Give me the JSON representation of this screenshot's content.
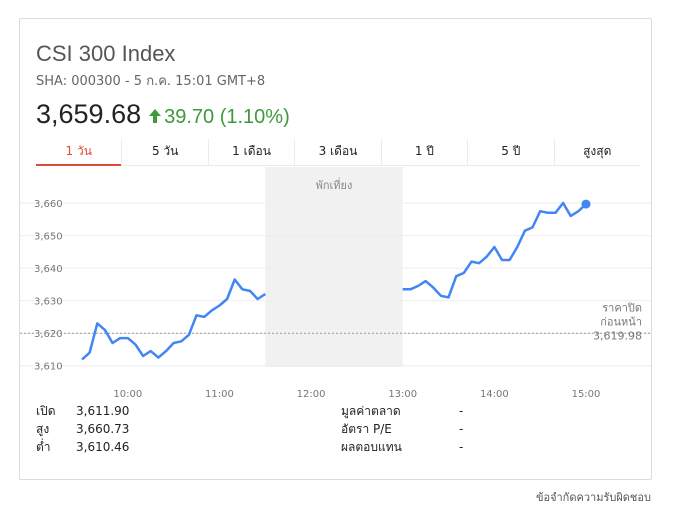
{
  "header": {
    "title": "CSI 300 Index",
    "subtitle": "SHA: 000300 - 5 ก.ค. 15:01 GMT+8",
    "price": "3,659.68",
    "change": "39.70 (1.10%)",
    "change_arrow": "arrow-up-icon",
    "change_color": "#3c9a3c"
  },
  "tabs": [
    {
      "label": "1 วัน",
      "active": true
    },
    {
      "label": "5 วัน",
      "active": false
    },
    {
      "label": "1 เดือน",
      "active": false
    },
    {
      "label": "3 เดือน",
      "active": false
    },
    {
      "label": "1 ปี",
      "active": false
    },
    {
      "label": "5 ปี",
      "active": false
    },
    {
      "label": "สูงสุด",
      "active": false
    }
  ],
  "chart_data": {
    "type": "line",
    "lunch_label": "พักเที่ยง",
    "prev_close_label_1": "ราคาปิด",
    "prev_close_label_2": "ก่อนหน้า",
    "prev_close_value": "3,619.98",
    "prev_close": 3619.98,
    "ylim": [
      3605,
      3668
    ],
    "y_ticks": [
      3610,
      3620,
      3630,
      3640,
      3650,
      3660
    ],
    "y_tick_labels": [
      "3,610",
      "3,620",
      "3,630",
      "3,640",
      "3,650",
      "3,660"
    ],
    "x_ticks": [
      "10:00",
      "11:00",
      "12:00",
      "13:00",
      "14:00",
      "15:00"
    ],
    "line_color": "#4285f4",
    "morning": {
      "x": [
        "09:30",
        "09:35",
        "09:40",
        "09:45",
        "09:50",
        "09:55",
        "10:00",
        "10:05",
        "10:10",
        "10:15",
        "10:20",
        "10:25",
        "10:30",
        "10:35",
        "10:40",
        "10:45",
        "10:50",
        "10:55",
        "11:00",
        "11:05",
        "11:10",
        "11:15",
        "11:20",
        "11:25",
        "11:30"
      ],
      "y": [
        3611.9,
        3614,
        3623,
        3621,
        3617,
        3618.5,
        3618.5,
        3616.5,
        3613,
        3614.5,
        3612.5,
        3614.5,
        3617,
        3617.5,
        3619.5,
        3625.5,
        3625,
        3627,
        3628.5,
        3630.5,
        3636.5,
        3633.5,
        3633,
        3630.5,
        3632
      ]
    },
    "afternoon": {
      "x": [
        "13:00",
        "13:05",
        "13:10",
        "13:15",
        "13:20",
        "13:25",
        "13:30",
        "13:35",
        "13:40",
        "13:45",
        "13:50",
        "13:55",
        "14:00",
        "14:05",
        "14:10",
        "14:15",
        "14:20",
        "14:25",
        "14:30",
        "14:35",
        "14:40",
        "14:45",
        "14:50",
        "14:55",
        "15:00"
      ],
      "y": [
        3633.5,
        3633.5,
        3634.5,
        3636,
        3634,
        3631.5,
        3631,
        3637.5,
        3638.5,
        3642,
        3641.5,
        3643.5,
        3646.5,
        3642.5,
        3642.5,
        3646.5,
        3651.5,
        3652.5,
        3657.5,
        3657,
        3657,
        3660,
        3656,
        3657.5,
        3659.68
      ]
    }
  },
  "stats": [
    {
      "label": "เปิด",
      "value": "3,611.90",
      "label2": "มูลค่าตลาด",
      "value2": "-"
    },
    {
      "label": "สูง",
      "value": "3,660.73",
      "label2": "อัตรา P/E",
      "value2": "-"
    },
    {
      "label": "ต่ำ",
      "value": "3,610.46",
      "label2": "ผลตอบแทน",
      "value2": "-"
    }
  ],
  "footer": {
    "disclaimer": "ข้อจำกัดความรับผิดชอบ"
  }
}
